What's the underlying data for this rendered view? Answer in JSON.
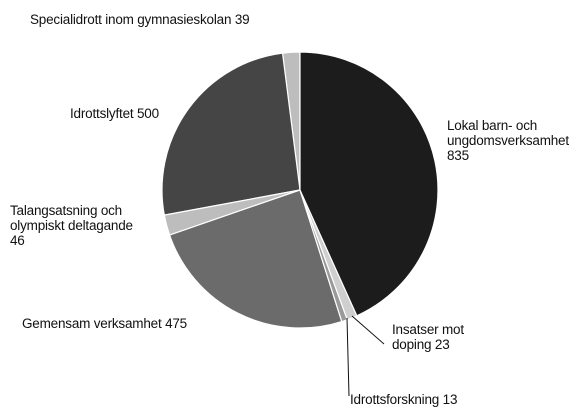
{
  "chart_data": {
    "type": "pie",
    "categories": [
      "Lokal barn- och ungdomsverksamhet",
      "Insatser mot doping",
      "Idrottsforskning",
      "Gemensam verksamhet",
      "Talangsatsning och olympiskt deltagande",
      "Idrottslyftet",
      "Specialidrott inom gymnasieskolan"
    ],
    "values": [
      835,
      23,
      13,
      475,
      46,
      500,
      39
    ],
    "colors": [
      "#1c1c1c",
      "#cfcfcf",
      "#9a9a9a",
      "#6b6b6b",
      "#bdbdbd",
      "#454545",
      "#bdbdbd"
    ]
  }
}
